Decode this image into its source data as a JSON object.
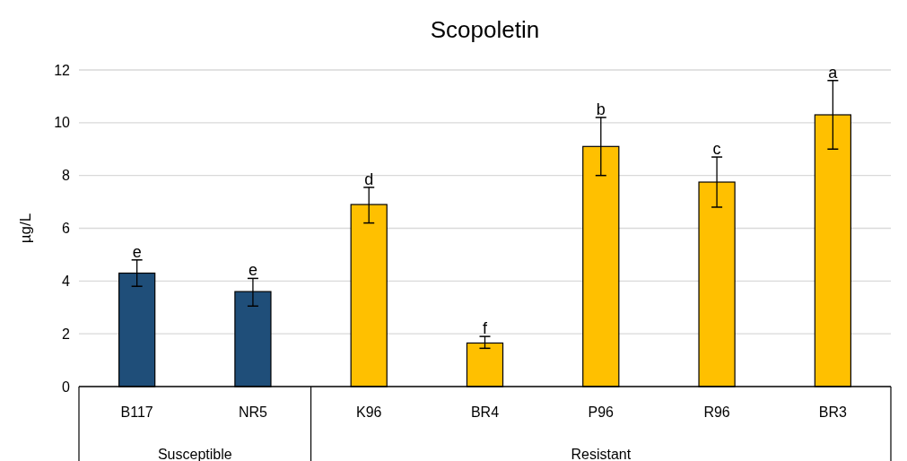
{
  "chart_data": {
    "type": "bar",
    "title": "Scopoletin",
    "ylabel": "µg/L",
    "categories": [
      "B117",
      "NR5",
      "K96",
      "BR4",
      "P96",
      "R96",
      "BR3"
    ],
    "values": [
      4.3,
      3.6,
      6.9,
      1.65,
      9.1,
      7.75,
      10.3
    ],
    "colors": [
      "#1f4e79",
      "#1f4e79",
      "#ffc000",
      "#ffc000",
      "#ffc000",
      "#ffc000",
      "#ffc000"
    ],
    "errors": [
      [
        3.8,
        4.8
      ],
      [
        3.05,
        4.1
      ],
      [
        6.2,
        7.55
      ],
      [
        1.45,
        1.9
      ],
      [
        8.0,
        10.2
      ],
      [
        6.8,
        8.7
      ],
      [
        9.0,
        11.6
      ]
    ],
    "ylim": [
      0,
      12
    ],
    "yticks": [
      0,
      2,
      4,
      6,
      8,
      10,
      12
    ],
    "grid": "y",
    "annotations": [
      {
        "text": "e",
        "x": "B117",
        "y": 4.8
      },
      {
        "text": "e",
        "x": "NR5",
        "y": 4.1
      },
      {
        "text": "d",
        "x": "K96",
        "y": 7.55
      },
      {
        "text": "f",
        "x": "BR4",
        "y": 1.9
      },
      {
        "text": "b",
        "x": "P96",
        "y": 10.2
      },
      {
        "text": "c",
        "x": "R96",
        "y": 8.7
      },
      {
        "text": "a",
        "x": "BR3",
        "y": 11.6
      },
      "Susceptible",
      "Resistant"
    ]
  }
}
